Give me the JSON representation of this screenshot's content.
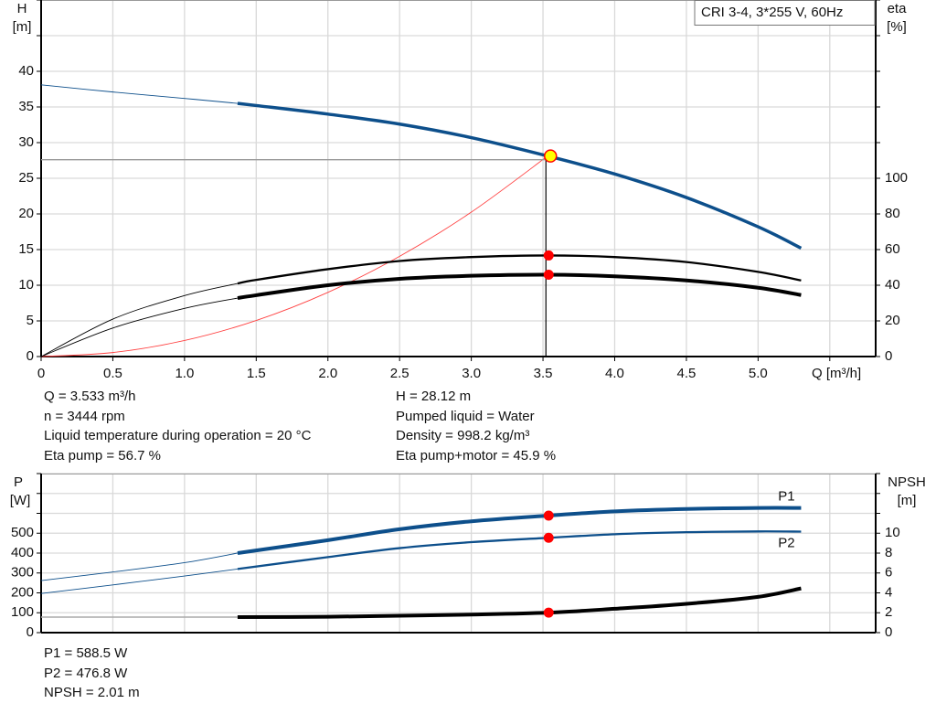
{
  "readouts_top": {
    "left": [
      "Q = 3.533 m³/h",
      "n = 3444 rpm",
      "Liquid temperature during operation = 20 °C",
      "Eta pump = 56.7 %"
    ],
    "right": [
      "H = 28.12 m",
      "Pumped liquid = Water",
      "Density = 998.2 kg/m³",
      "Eta pump+motor = 45.9 %"
    ]
  },
  "readouts_bottom": [
    "P1 = 588.5 W",
    "P2 = 476.8 W",
    "NPSH = 2.01 m"
  ],
  "colors": {
    "head": "#0d4f8b",
    "power": "#0d4f8b",
    "efficiency": "#000000",
    "npsh": "#000000",
    "system_curve": "#ff4040",
    "duty_point": "#ff0000",
    "duty_point_head_fill": "#ffff00",
    "grid": "#d9d9d9"
  },
  "chart_data": [
    {
      "type": "line",
      "title": "CRI 3-4, 3*255 V, 60Hz",
      "xlabel": "Q [m³/h]",
      "ylabel": "H",
      "yunit": "[m]",
      "y2label": "eta",
      "y2unit": "[%]",
      "xlim": [
        0,
        5.82
      ],
      "ylim": [
        0,
        50
      ],
      "y2lim": [
        0,
        200
      ],
      "xticks": [
        "0",
        "0.5",
        "1.0",
        "1.5",
        "2.0",
        "2.5",
        "3.0",
        "3.5",
        "4.0",
        "4.5",
        "5.0"
      ],
      "xtick_values": [
        0,
        0.5,
        1.0,
        1.5,
        2.0,
        2.5,
        3.0,
        3.5,
        4.0,
        4.5,
        5.0
      ],
      "yticks": [
        0,
        5,
        10,
        15,
        20,
        25,
        30,
        35,
        40
      ],
      "y2ticks": [
        0,
        20,
        40,
        60,
        80,
        100
      ],
      "grid": true,
      "operating_range_start_q": 1.37,
      "series": [
        {
          "axis": "left",
          "color": "#0d4f8b",
          "points": [
            [
              0,
              38.1
            ],
            [
              0.5,
              37.1
            ],
            [
              1.0,
              36.2
            ],
            [
              1.37,
              35.5
            ],
            [
              1.5,
              35.2
            ],
            [
              2.0,
              34.0
            ],
            [
              2.5,
              32.6
            ],
            [
              3.0,
              30.7
            ],
            [
              3.533,
              28.12
            ],
            [
              4.0,
              25.6
            ],
            [
              4.5,
              22.3
            ],
            [
              5.0,
              18.2
            ],
            [
              5.3,
              15.2
            ]
          ]
        },
        {
          "axis": "right",
          "color": "#000000",
          "points": [
            [
              0,
              0
            ],
            [
              0.5,
              21
            ],
            [
              1.0,
              34.2
            ],
            [
              1.37,
              41
            ],
            [
              1.5,
              43
            ],
            [
              2.0,
              49
            ],
            [
              2.5,
              53.6
            ],
            [
              3.0,
              55.8
            ],
            [
              3.533,
              56.7
            ],
            [
              4.0,
              55.8
            ],
            [
              4.5,
              53
            ],
            [
              5.0,
              47.5
            ],
            [
              5.3,
              42.7
            ]
          ]
        },
        {
          "axis": "right",
          "color": "#000000",
          "bold": true,
          "points": [
            [
              0,
              0
            ],
            [
              0.5,
              16
            ],
            [
              1.0,
              27
            ],
            [
              1.37,
              32.8
            ],
            [
              1.5,
              34.4
            ],
            [
              2.0,
              40
            ],
            [
              2.5,
              43.6
            ],
            [
              3.0,
              45.3
            ],
            [
              3.533,
              45.9
            ],
            [
              4.0,
              45
            ],
            [
              4.5,
              42.7
            ],
            [
              5.0,
              38.6
            ],
            [
              5.3,
              34.5
            ]
          ]
        }
      ],
      "system_curve": {
        "color": "#ff4040",
        "points": [
          [
            0,
            0
          ],
          [
            0.5,
            0.56
          ],
          [
            1.0,
            2.25
          ],
          [
            1.5,
            5.06
          ],
          [
            2.0,
            9.0
          ],
          [
            2.5,
            14.06
          ],
          [
            3.0,
            20.25
          ],
          [
            3.533,
            28.12
          ]
        ]
      },
      "duty_point": {
        "q": 3.533,
        "h": 28.12,
        "eta_pump": 56.7,
        "eta_pump_motor": 45.9
      }
    },
    {
      "type": "line",
      "ylabel": "P",
      "yunit": "[W]",
      "y2label": "NPSH",
      "y2unit": "[m]",
      "xlim": [
        0,
        5.82
      ],
      "ylim": [
        0,
        800
      ],
      "y2lim": [
        0,
        16
      ],
      "xtick_values": [
        0,
        0.5,
        1.0,
        1.5,
        2.0,
        2.5,
        3.0,
        3.5,
        4.0,
        4.5,
        5.0,
        5.5
      ],
      "yticks": [
        0,
        100,
        200,
        300,
        400,
        500
      ],
      "y2ticks": [
        0,
        2,
        4,
        6,
        8,
        10
      ],
      "grid": true,
      "operating_range_start_q": 1.37,
      "series": [
        {
          "name": "P1",
          "axis": "left",
          "color": "#0d4f8b",
          "bold": true,
          "points": [
            [
              0,
              262
            ],
            [
              0.5,
              305
            ],
            [
              1.0,
              352
            ],
            [
              1.37,
              400
            ],
            [
              2.0,
              465
            ],
            [
              2.5,
              520
            ],
            [
              3.0,
              560
            ],
            [
              3.533,
              588.5
            ],
            [
              4.0,
              610
            ],
            [
              4.5,
              622
            ],
            [
              5.0,
              627
            ],
            [
              5.3,
              627
            ]
          ]
        },
        {
          "name": "P2",
          "axis": "left",
          "color": "#0d4f8b",
          "points": [
            [
              0,
              197
            ],
            [
              0.5,
              240
            ],
            [
              1.0,
              285
            ],
            [
              1.37,
              320
            ],
            [
              2.0,
              380
            ],
            [
              2.5,
              425
            ],
            [
              3.0,
              455
            ],
            [
              3.533,
              476.8
            ],
            [
              4.0,
              495
            ],
            [
              4.5,
              505
            ],
            [
              5.0,
              509
            ],
            [
              5.3,
              508
            ]
          ]
        },
        {
          "axis": "right",
          "color": "#000000",
          "bold": true,
          "points": [
            [
              0,
              1.56
            ],
            [
              1.37,
              1.56
            ],
            [
              2.0,
              1.6
            ],
            [
              2.5,
              1.7
            ],
            [
              3.0,
              1.82
            ],
            [
              3.533,
              2.01
            ],
            [
              4.0,
              2.4
            ],
            [
              4.5,
              2.9
            ],
            [
              5.0,
              3.6
            ],
            [
              5.3,
              4.45
            ]
          ]
        }
      ],
      "duty_point": {
        "q": 3.533,
        "p1": 588.5,
        "p2": 476.8,
        "npsh": 2.01
      }
    }
  ]
}
